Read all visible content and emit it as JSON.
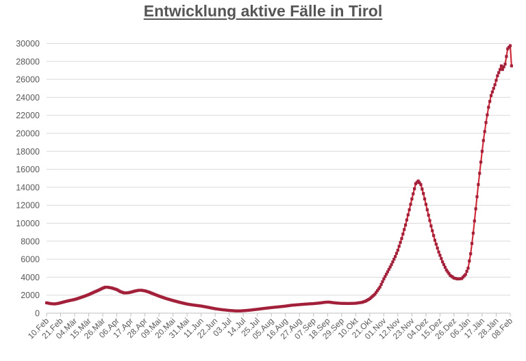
{
  "chart_data": {
    "type": "line",
    "title": "Entwicklung aktive Fälle in Tirol",
    "series_name": "aktive Fälle",
    "legend": "none",
    "grid": "horizontal",
    "marker": "square",
    "x_axis_note": "daily values from 10.Feb to 08.Feb (one year), labels every 11 days",
    "x_tick_interval_days": 11,
    "x_tick_labels": [
      "10.Feb",
      "21.Feb",
      "04.Mär",
      "15.Mär",
      "26.Mär",
      "06.Apr",
      "17.Apr",
      "28.Apr",
      "09.Mai",
      "20.Mai",
      "31.Mai",
      "11.Jun",
      "22.Jun",
      "03.Jul",
      "14.Jul",
      "25.Jul",
      "05.Aug",
      "16.Aug",
      "27.Aug",
      "07.Sep",
      "18.Sep",
      "29.Sep",
      "10.Okt",
      "21.Okt",
      "01.Nov",
      "12.Nov",
      "23.Nov",
      "04.Dez",
      "15.Dez",
      "26.Dez",
      "06.Jän",
      "17.Jän",
      "28.Jän",
      "08.Feb"
    ],
    "ylim": [
      0,
      30000
    ],
    "y_tick_values": [
      0,
      2000,
      4000,
      6000,
      8000,
      10000,
      12000,
      14000,
      16000,
      18000,
      20000,
      22000,
      24000,
      26000,
      28000,
      30000
    ],
    "total_days": 365,
    "keypoints_day_value": [
      [
        0,
        1150
      ],
      [
        3,
        1060
      ],
      [
        6,
        1020
      ],
      [
        9,
        1080
      ],
      [
        11,
        1150
      ],
      [
        15,
        1300
      ],
      [
        18,
        1400
      ],
      [
        22,
        1520
      ],
      [
        26,
        1700
      ],
      [
        30,
        1900
      ],
      [
        33,
        2060
      ],
      [
        37,
        2320
      ],
      [
        41,
        2570
      ],
      [
        44,
        2780
      ],
      [
        46,
        2890
      ],
      [
        48,
        2880
      ],
      [
        51,
        2800
      ],
      [
        55,
        2620
      ],
      [
        58,
        2380
      ],
      [
        61,
        2240
      ],
      [
        64,
        2270
      ],
      [
        66,
        2330
      ],
      [
        69,
        2450
      ],
      [
        72,
        2540
      ],
      [
        74,
        2550
      ],
      [
        77,
        2480
      ],
      [
        80,
        2350
      ],
      [
        84,
        2120
      ],
      [
        88,
        1900
      ],
      [
        93,
        1650
      ],
      [
        99,
        1400
      ],
      [
        104,
        1210
      ],
      [
        110,
        1010
      ],
      [
        115,
        900
      ],
      [
        121,
        790
      ],
      [
        126,
        660
      ],
      [
        132,
        490
      ],
      [
        137,
        390
      ],
      [
        143,
        300
      ],
      [
        148,
        250
      ],
      [
        151,
        245
      ],
      [
        154,
        270
      ],
      [
        159,
        330
      ],
      [
        165,
        430
      ],
      [
        170,
        520
      ],
      [
        176,
        620
      ],
      [
        181,
        690
      ],
      [
        187,
        780
      ],
      [
        192,
        880
      ],
      [
        198,
        950
      ],
      [
        203,
        1010
      ],
      [
        209,
        1060
      ],
      [
        214,
        1130
      ],
      [
        218,
        1210
      ],
      [
        221,
        1230
      ],
      [
        224,
        1170
      ],
      [
        228,
        1110
      ],
      [
        231,
        1090
      ],
      [
        236,
        1070
      ],
      [
        242,
        1100
      ],
      [
        247,
        1200
      ],
      [
        250,
        1350
      ],
      [
        253,
        1600
      ],
      [
        257,
        2100
      ],
      [
        261,
        2900
      ],
      [
        264,
        3800
      ],
      [
        267,
        4600
      ],
      [
        270,
        5400
      ],
      [
        273,
        6300
      ],
      [
        275,
        7000
      ],
      [
        278,
        8300
      ],
      [
        281,
        9800
      ],
      [
        284,
        11500
      ],
      [
        286,
        12700
      ],
      [
        289,
        14400
      ],
      [
        291,
        14700
      ],
      [
        293,
        14300
      ],
      [
        295,
        13300
      ],
      [
        298,
        11500
      ],
      [
        301,
        9700
      ],
      [
        304,
        8100
      ],
      [
        307,
        6800
      ],
      [
        310,
        5700
      ],
      [
        313,
        4800
      ],
      [
        316,
        4200
      ],
      [
        319,
        3900
      ],
      [
        322,
        3800
      ],
      [
        325,
        3850
      ],
      [
        328,
        4300
      ],
      [
        330,
        5000
      ],
      [
        332,
        6600
      ],
      [
        334,
        8900
      ],
      [
        336,
        11600
      ],
      [
        338,
        14300
      ],
      [
        340,
        16800
      ],
      [
        342,
        19200
      ],
      [
        344,
        21200
      ],
      [
        346,
        22900
      ],
      [
        348,
        24200
      ],
      [
        351,
        25400
      ],
      [
        353,
        26400
      ],
      [
        355,
        27100
      ],
      [
        356,
        27500
      ],
      [
        357,
        27100
      ],
      [
        358,
        27400
      ],
      [
        359,
        27700
      ],
      [
        361,
        29400
      ],
      [
        363,
        29750
      ],
      [
        364,
        27500
      ]
    ]
  },
  "colors": {
    "line": "#CE2533",
    "marker": "#A3203A",
    "gridline": "#D9D9D9",
    "axis": "#BFBFBF",
    "axis_text": "#595959",
    "title_text": "#555555",
    "background": "#FFFFFF"
  }
}
